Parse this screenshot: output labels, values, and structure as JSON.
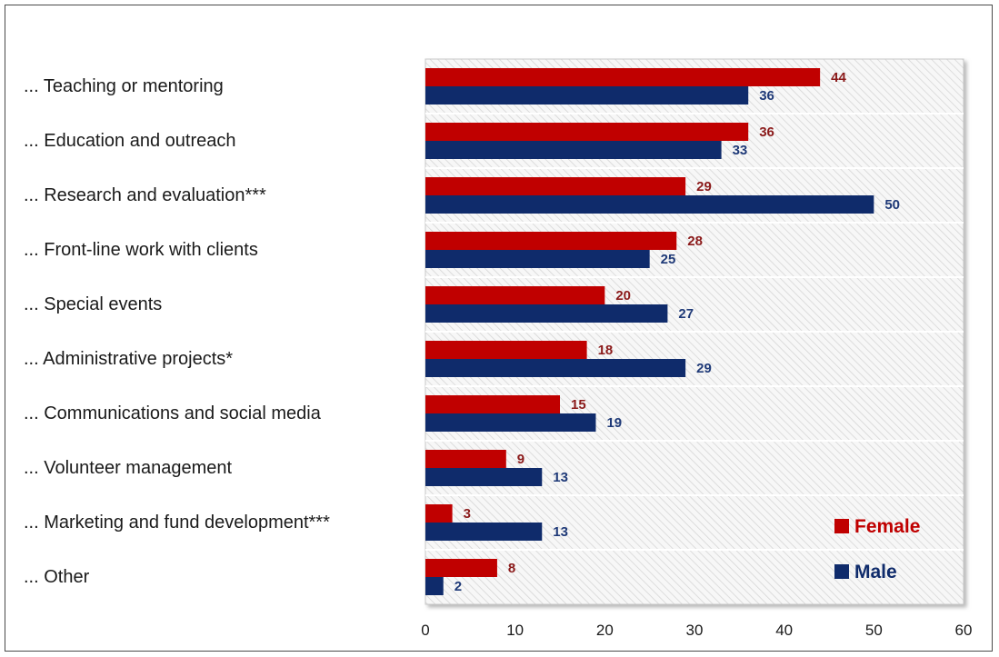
{
  "chart_data": {
    "type": "bar",
    "orientation": "horizontal",
    "categories": [
      "... Teaching or mentoring",
      "... Education and outreach",
      "... Research and evaluation***",
      "... Front-line work with clients",
      "... Special events",
      "... Administrative projects*",
      "... Communications and social media",
      "... Volunteer management",
      "... Marketing and fund development***",
      "... Other"
    ],
    "series": [
      {
        "name": "Female",
        "color": "#c00000",
        "label_color": "#8b1a1a",
        "values": [
          44,
          36,
          29,
          28,
          20,
          18,
          15,
          9,
          3,
          8
        ]
      },
      {
        "name": "Male",
        "color": "#0f2b6b",
        "label_color": "#1f3a78",
        "values": [
          36,
          33,
          50,
          25,
          27,
          29,
          19,
          13,
          13,
          2
        ]
      }
    ],
    "xlim": [
      0,
      60
    ],
    "xticks": [
      "0",
      "10",
      "20",
      "30",
      "40",
      "50",
      "60"
    ],
    "grid": true,
    "legend": "bottom-right",
    "title": "",
    "xlabel": "",
    "ylabel": ""
  }
}
